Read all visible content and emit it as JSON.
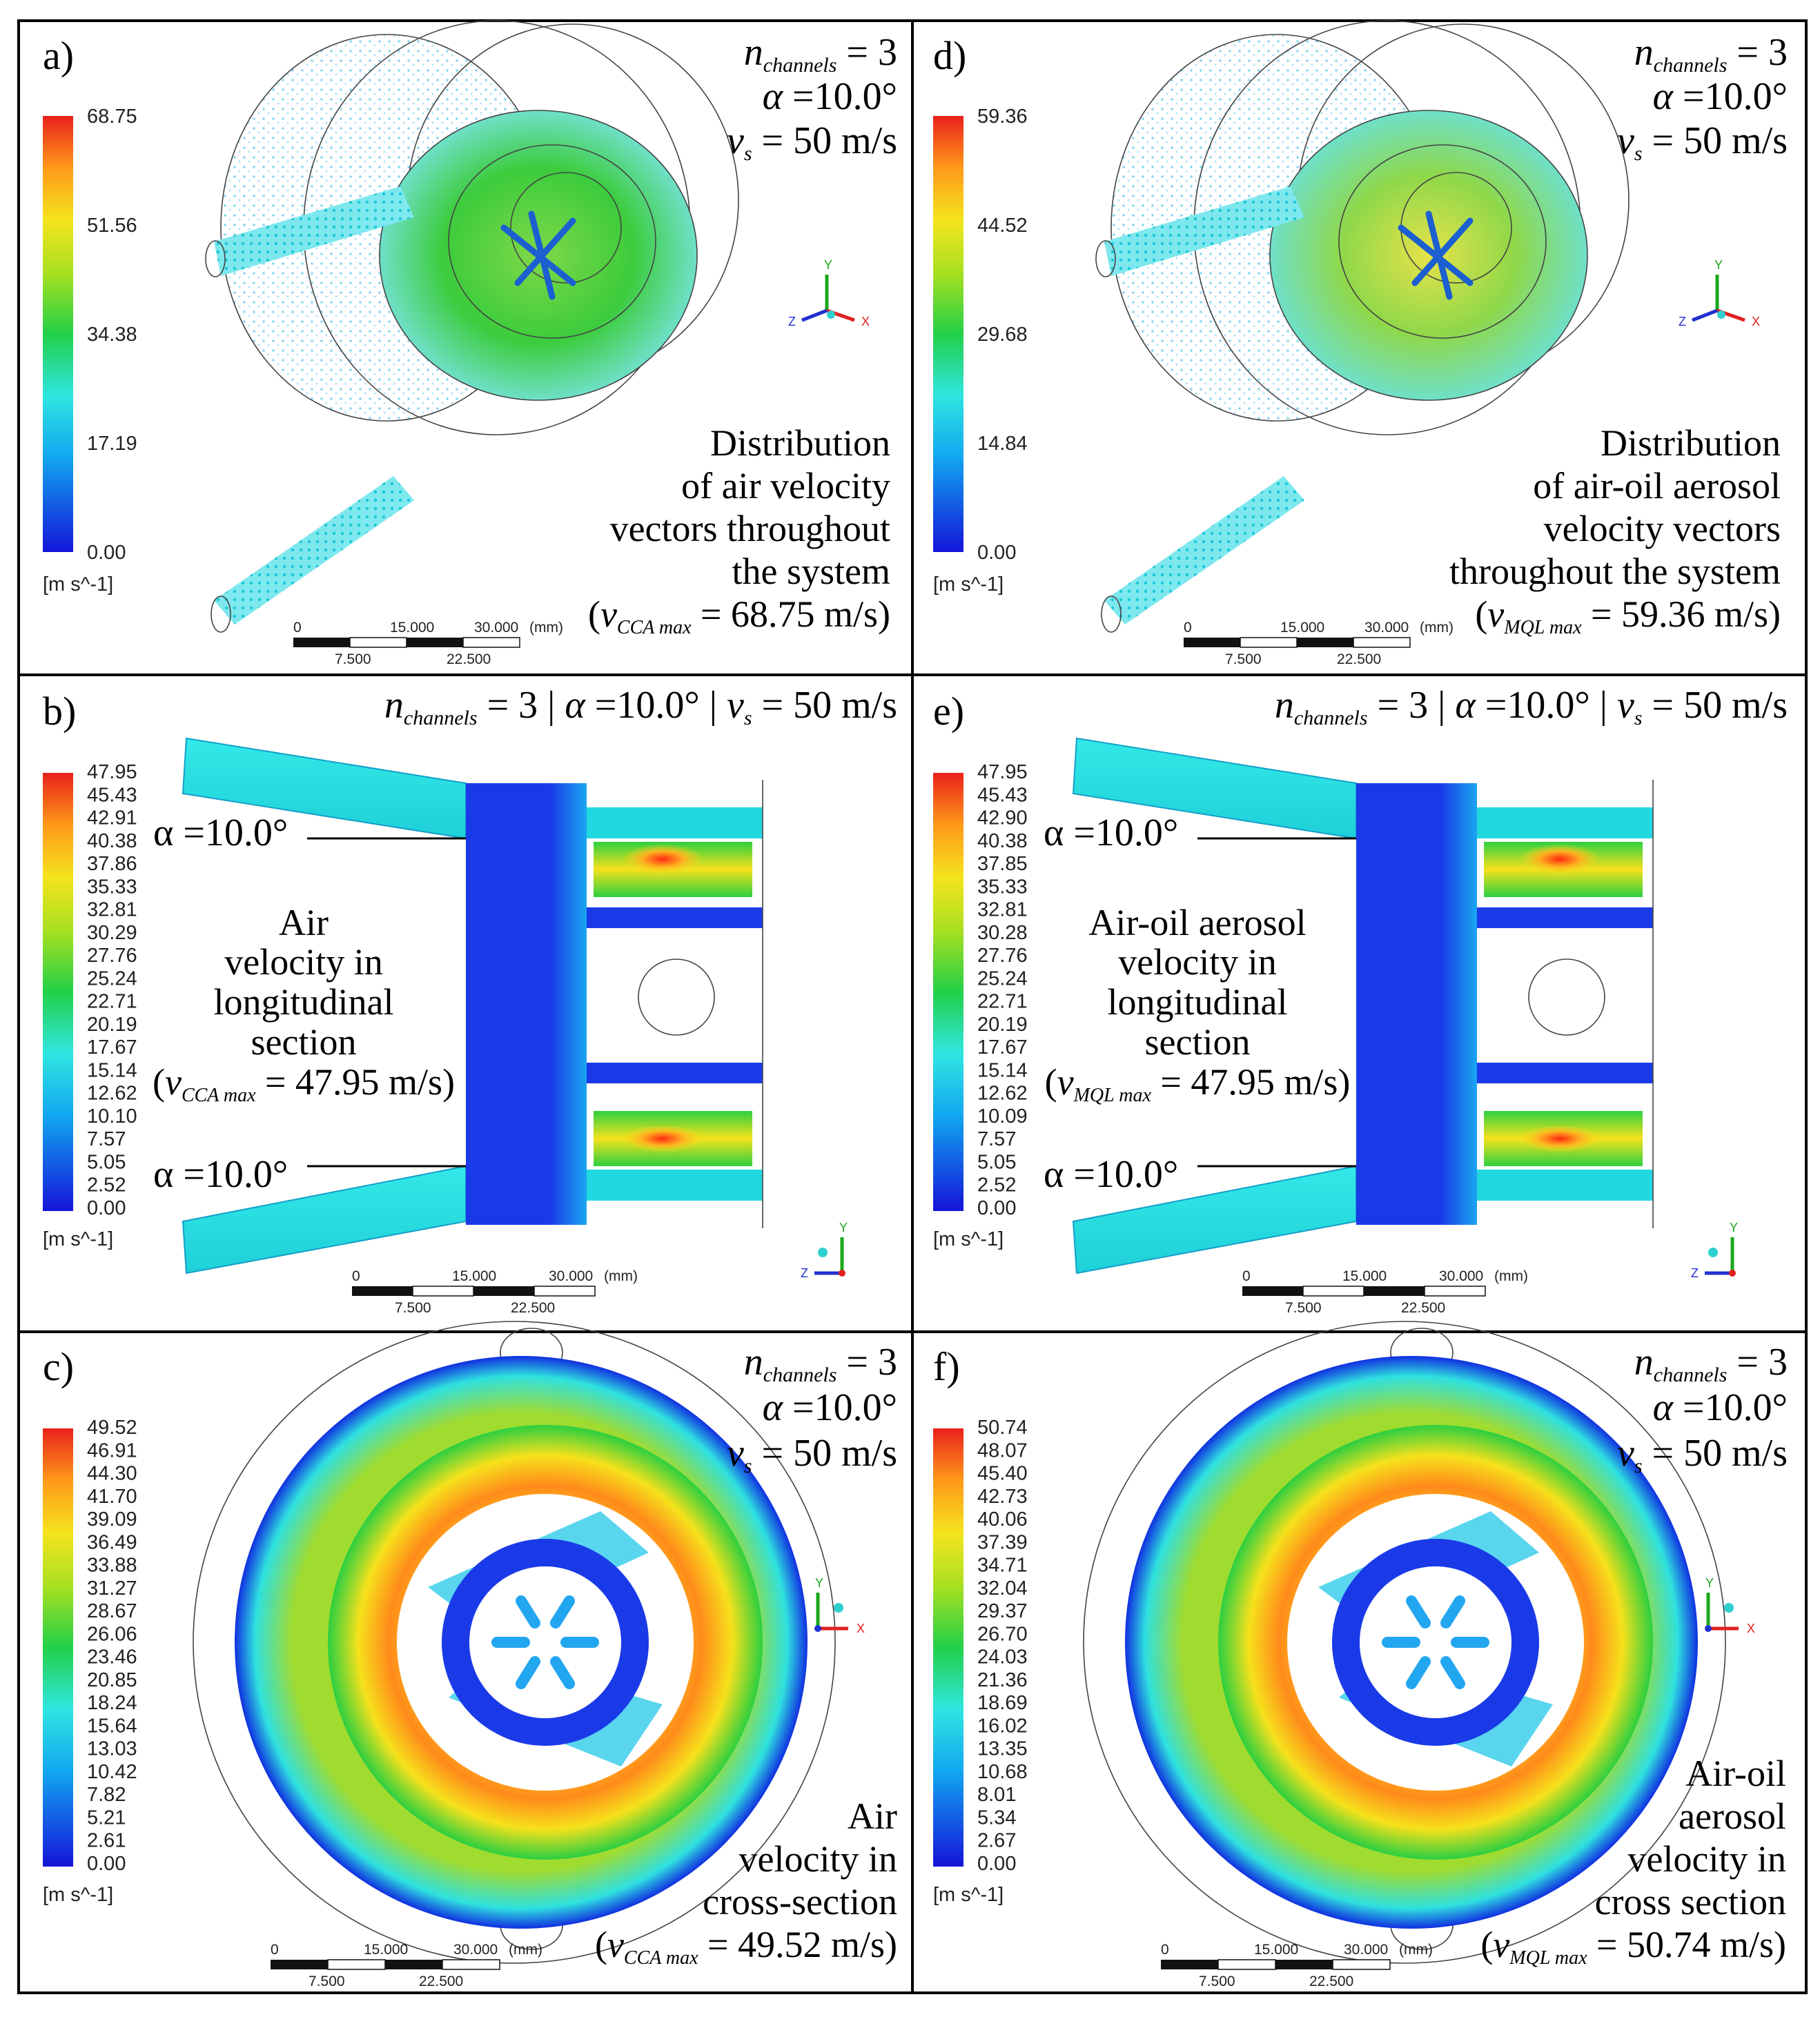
{
  "panels": {
    "a": {
      "letter": "a)",
      "params": {
        "n_label": "n",
        "n_sub": "channels",
        "n_value": " = 3",
        "alpha_label": "α",
        "alpha_value": " =10.0°",
        "v_label": "v",
        "v_sub": "s",
        "v_value": " = 50 m/s"
      },
      "legend": {
        "ticks": [
          "68.75",
          "51.56",
          "34.38",
          "17.19",
          "0.00"
        ],
        "unit": "[m s^-1]"
      },
      "desc_lines": [
        "Distribution",
        "of air velocity",
        "vectors throughout",
        "the system"
      ],
      "max": {
        "open": "(",
        "v": "v",
        "sub": "CCA max",
        "value": " = 68.75 m/s)"
      },
      "scale": {
        "top": [
          "0",
          "15.000",
          "30.000",
          "(mm)"
        ],
        "bottom": [
          "7.500",
          "22.500"
        ]
      }
    },
    "d": {
      "letter": "d)",
      "params": {
        "n_label": "n",
        "n_sub": "channels",
        "n_value": " = 3",
        "alpha_label": "α",
        "alpha_value": " =10.0°",
        "v_label": "v",
        "v_sub": "s",
        "v_value": " = 50 m/s"
      },
      "legend": {
        "ticks": [
          "59.36",
          "44.52",
          "29.68",
          "14.84",
          "0.00"
        ],
        "unit": "[m s^-1]"
      },
      "desc_lines": [
        "Distribution",
        "of air-oil aerosol",
        "velocity vectors",
        "throughout the system"
      ],
      "max": {
        "open": "(",
        "v": "v",
        "sub": "MQL max",
        "value": " = 59.36 m/s)"
      },
      "scale": {
        "top": [
          "0",
          "15.000",
          "30.000",
          "(mm)"
        ],
        "bottom": [
          "7.500",
          "22.500"
        ]
      }
    },
    "b": {
      "letter": "b)",
      "header": {
        "n": "n",
        "n_sub": "channels",
        "rest1": " = 3 | ",
        "alpha": "α",
        "rest2": " =10.0° | ",
        "v": "v",
        "v_sub": "s",
        "rest3": " = 50 m/s"
      },
      "angle_top": "α =10.0°",
      "angle_bottom": "α =10.0°",
      "legend": {
        "ticks": [
          "47.95",
          "45.43",
          "42.91",
          "40.38",
          "37.86",
          "35.33",
          "32.81",
          "30.29",
          "27.76",
          "25.24",
          "22.71",
          "20.19",
          "17.67",
          "15.14",
          "12.62",
          "10.10",
          "7.57",
          "5.05",
          "2.52",
          "0.00"
        ],
        "unit": "[m s^-1]"
      },
      "desc_lines": [
        "Air",
        "velocity in",
        "longitudinal",
        "section"
      ],
      "max": {
        "open": "(",
        "v": "v",
        "sub": "CCA max",
        "value": " = 47.95 m/s)"
      },
      "scale": {
        "top": [
          "0",
          "15.000",
          "30.000",
          "(mm)"
        ],
        "bottom": [
          "7.500",
          "22.500"
        ]
      }
    },
    "e": {
      "letter": "e)",
      "header": {
        "n": "n",
        "n_sub": "channels",
        "rest1": " = 3 | ",
        "alpha": "α",
        "rest2": " =10.0° | ",
        "v": "v",
        "v_sub": "s",
        "rest3": " = 50 m/s"
      },
      "angle_top": "α =10.0°",
      "angle_bottom": "α =10.0°",
      "legend": {
        "ticks": [
          "47.95",
          "45.43",
          "42.90",
          "40.38",
          "37.85",
          "35.33",
          "32.81",
          "30.28",
          "27.76",
          "25.24",
          "22.71",
          "20.19",
          "17.67",
          "15.14",
          "12.62",
          "10.09",
          "7.57",
          "5.05",
          "2.52",
          "0.00"
        ],
        "unit": "[m s^-1]"
      },
      "desc_lines": [
        "Air-oil aerosol",
        "velocity in",
        "longitudinal",
        "section"
      ],
      "max": {
        "open": "(",
        "v": "v",
        "sub": "MQL max",
        "value": " = 47.95 m/s)"
      },
      "scale": {
        "top": [
          "0",
          "15.000",
          "30.000",
          "(mm)"
        ],
        "bottom": [
          "7.500",
          "22.500"
        ]
      }
    },
    "c": {
      "letter": "c)",
      "params": {
        "n_label": "n",
        "n_sub": "channels",
        "n_value": " = 3",
        "alpha_label": "α",
        "alpha_value": " =10.0°",
        "v_label": "v",
        "v_sub": "s",
        "v_value": " = 50 m/s"
      },
      "legend": {
        "ticks": [
          "49.52",
          "46.91",
          "44.30",
          "41.70",
          "39.09",
          "36.49",
          "33.88",
          "31.27",
          "28.67",
          "26.06",
          "23.46",
          "20.85",
          "18.24",
          "15.64",
          "13.03",
          "10.42",
          "7.82",
          "5.21",
          "2.61",
          "0.00"
        ],
        "unit": "[m s^-1]"
      },
      "desc_lines": [
        "Air",
        "velocity in",
        "cross-section"
      ],
      "max": {
        "open": "(",
        "v": "v",
        "sub": "CCA max",
        "value": " = 49.52 m/s)"
      },
      "scale": {
        "top": [
          "0",
          "15.000",
          "30.000",
          "(mm)"
        ],
        "bottom": [
          "7.500",
          "22.500"
        ]
      }
    },
    "f": {
      "letter": "f)",
      "params": {
        "n_label": "n",
        "n_sub": "channels",
        "n_value": " = 3",
        "alpha_label": "α",
        "alpha_value": " =10.0°",
        "v_label": "v",
        "v_sub": "s",
        "v_value": " = 50 m/s"
      },
      "legend": {
        "ticks": [
          "50.74",
          "48.07",
          "45.40",
          "42.73",
          "40.06",
          "37.39",
          "34.71",
          "32.04",
          "29.37",
          "26.70",
          "24.03",
          "21.36",
          "18.69",
          "16.02",
          "13.35",
          "10.68",
          "8.01",
          "5.34",
          "2.67",
          "0.00"
        ],
        "unit": "[m s^-1]"
      },
      "desc_lines": [
        "Air-oil",
        "aerosol",
        "velocity in",
        "cross section"
      ],
      "max": {
        "open": "(",
        "v": "v",
        "sub": "MQL max",
        "value": " = 50.74 m/s)"
      },
      "scale": {
        "top": [
          "0",
          "15.000",
          "30.000",
          "(mm)"
        ],
        "bottom": [
          "7.500",
          "22.500"
        ]
      }
    }
  },
  "axes": {
    "x": "X",
    "y": "Y",
    "z": "Z"
  },
  "colors": {
    "red": "#e8211b",
    "orange": "#ff8a1a",
    "yellow": "#f4e41c",
    "green": "#2ecc2e",
    "cyan": "#2fe0e0",
    "blue": "#1030e0"
  }
}
